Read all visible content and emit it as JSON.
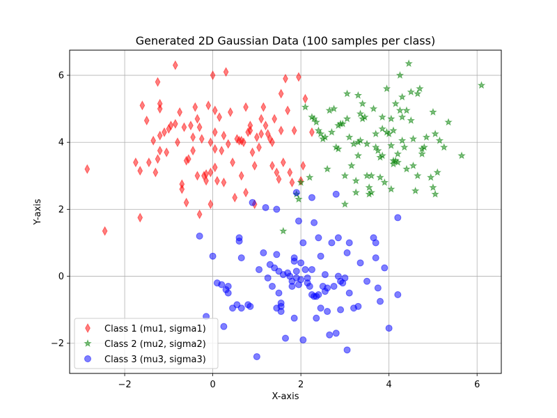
{
  "chart_data": {
    "type": "scatter",
    "title": "Generated 2D Gaussian Data (100 samples per class)",
    "xlabel": "X-axis",
    "ylabel": "Y-axis",
    "xlim": [
      -3.25,
      6.55
    ],
    "ylim": [
      -2.9,
      6.75
    ],
    "xticks": [
      -2,
      0,
      2,
      4,
      6
    ],
    "yticks": [
      -2,
      0,
      2,
      4,
      6
    ],
    "xtick_labels": [
      "−2",
      "0",
      "2",
      "4",
      "6"
    ],
    "ytick_labels": [
      "−2",
      "0",
      "2",
      "4",
      "6"
    ],
    "grid": true,
    "legend_position": "lower-left",
    "series": [
      {
        "name": "Class 1 (mu1, sigma1)",
        "marker": "thin_diamond",
        "color": "#ff0000",
        "points": [
          [
            -2.85,
            3.2
          ],
          [
            -2.45,
            1.35
          ],
          [
            -1.75,
            3.4
          ],
          [
            -1.65,
            3.15
          ],
          [
            -1.65,
            1.75
          ],
          [
            -1.6,
            5.1
          ],
          [
            -1.5,
            4.65
          ],
          [
            -1.45,
            3.4
          ],
          [
            -1.35,
            4.05
          ],
          [
            -1.3,
            3.1
          ],
          [
            -1.25,
            5.8
          ],
          [
            -1.25,
            3.5
          ],
          [
            -1.2,
            5.15
          ],
          [
            -1.2,
            5.0
          ],
          [
            -1.2,
            4.2
          ],
          [
            -1.2,
            3.75
          ],
          [
            -1.1,
            4.3
          ],
          [
            -1.05,
            3.7
          ],
          [
            -1.0,
            4.4
          ],
          [
            -0.95,
            4.5
          ],
          [
            -0.85,
            6.3
          ],
          [
            -0.85,
            4.55
          ],
          [
            -0.8,
            4.0
          ],
          [
            -0.75,
            4.9
          ],
          [
            -0.7,
            2.75
          ],
          [
            -0.7,
            2.6
          ],
          [
            -0.65,
            4.45
          ],
          [
            -0.6,
            3.45
          ],
          [
            -0.6,
            2.2
          ],
          [
            -0.55,
            3.5
          ],
          [
            -0.5,
            4.5
          ],
          [
            -0.45,
            4.15
          ],
          [
            -0.45,
            3.75
          ],
          [
            -0.4,
            5.05
          ],
          [
            -0.35,
            4.7
          ],
          [
            -0.35,
            3.0
          ],
          [
            -0.3,
            4.45
          ],
          [
            -0.3,
            1.85
          ],
          [
            -0.25,
            4.1
          ],
          [
            -0.2,
            3.0
          ],
          [
            -0.15,
            3.05
          ],
          [
            -0.15,
            2.85
          ],
          [
            -0.1,
            5.1
          ],
          [
            -0.05,
            4.0
          ],
          [
            -0.05,
            3.1
          ],
          [
            -0.05,
            2.15
          ],
          [
            0.05,
            4.3
          ],
          [
            0.0,
            6.0
          ],
          [
            0.05,
            4.95
          ],
          [
            0.05,
            3.8
          ],
          [
            0.05,
            3.25
          ],
          [
            0.1,
            2.85
          ],
          [
            0.15,
            4.75
          ],
          [
            0.2,
            3.75
          ],
          [
            0.25,
            4.2
          ],
          [
            0.25,
            2.8
          ],
          [
            0.3,
            6.1
          ],
          [
            0.35,
            3.95
          ],
          [
            0.4,
            4.9
          ],
          [
            0.45,
            3.4
          ],
          [
            0.5,
            2.35
          ],
          [
            0.55,
            4.1
          ],
          [
            0.6,
            4.05
          ],
          [
            0.65,
            4.05
          ],
          [
            0.65,
            3.0
          ],
          [
            0.7,
            4.0
          ],
          [
            0.75,
            5.05
          ],
          [
            0.75,
            2.5
          ],
          [
            0.8,
            4.3
          ],
          [
            0.85,
            4.5
          ],
          [
            0.85,
            4.35
          ],
          [
            0.9,
            3.7
          ],
          [
            0.95,
            3.3
          ],
          [
            0.95,
            2.15
          ],
          [
            1.0,
            4.15
          ],
          [
            1.05,
            3.85
          ],
          [
            1.1,
            4.7
          ],
          [
            1.1,
            4.25
          ],
          [
            1.15,
            5.05
          ],
          [
            1.2,
            4.5
          ],
          [
            1.25,
            4.25
          ],
          [
            1.3,
            4.1
          ],
          [
            1.35,
            4.0
          ],
          [
            1.35,
            3.3
          ],
          [
            1.4,
            4.7
          ],
          [
            1.45,
            3.1
          ],
          [
            1.5,
            2.9
          ],
          [
            1.55,
            5.45
          ],
          [
            1.55,
            4.35
          ],
          [
            1.6,
            3.4
          ],
          [
            1.65,
            5.9
          ],
          [
            1.7,
            4.95
          ],
          [
            1.75,
            3.1
          ],
          [
            1.8,
            2.8
          ],
          [
            1.85,
            4.35
          ],
          [
            1.95,
            5.95
          ],
          [
            2.0,
            2.85
          ],
          [
            2.05,
            3.3
          ],
          [
            2.1,
            5.3
          ],
          [
            2.25,
            4.3
          ]
        ]
      },
      {
        "name": "Class 2 (mu2, sigma2)",
        "marker": "star",
        "color": "#008000",
        "points": [
          [
            1.6,
            1.35
          ],
          [
            1.9,
            2.45
          ],
          [
            1.95,
            2.3
          ],
          [
            2.0,
            2.8
          ],
          [
            2.1,
            5.05
          ],
          [
            2.2,
            2.95
          ],
          [
            2.3,
            4.7
          ],
          [
            2.35,
            4.6
          ],
          [
            2.4,
            4.35
          ],
          [
            2.45,
            4.25
          ],
          [
            2.55,
            4.15
          ],
          [
            2.6,
            3.2
          ],
          [
            2.65,
            4.95
          ],
          [
            2.7,
            4.3
          ],
          [
            2.8,
            3.85
          ],
          [
            2.85,
            3.8
          ],
          [
            2.85,
            4.5
          ],
          [
            2.9,
            4.55
          ],
          [
            3.0,
            2.15
          ],
          [
            3.0,
            3.0
          ],
          [
            3.05,
            4.7
          ],
          [
            3.1,
            4.15
          ],
          [
            3.2,
            3.95
          ],
          [
            3.25,
            2.85
          ],
          [
            3.3,
            5.4
          ],
          [
            3.3,
            4.0
          ],
          [
            3.35,
            4.85
          ],
          [
            3.4,
            5.15
          ],
          [
            3.45,
            4.75
          ],
          [
            3.5,
            3.95
          ],
          [
            3.55,
            2.65
          ],
          [
            3.6,
            3.0
          ],
          [
            3.65,
            5.0
          ],
          [
            3.7,
            4.25
          ],
          [
            3.75,
            3.75
          ],
          [
            3.8,
            3.55
          ],
          [
            3.85,
            4.4
          ],
          [
            3.85,
            4.75
          ],
          [
            3.9,
            2.8
          ],
          [
            3.95,
            5.6
          ],
          [
            4.0,
            4.25
          ],
          [
            4.05,
            3.9
          ],
          [
            4.05,
            4.7
          ],
          [
            4.1,
            3.45
          ],
          [
            4.1,
            3.35
          ],
          [
            4.15,
            3.45
          ],
          [
            4.15,
            5.15
          ],
          [
            4.2,
            3.4
          ],
          [
            4.25,
            4.95
          ],
          [
            4.3,
            4.75
          ],
          [
            4.3,
            4.05
          ],
          [
            4.35,
            3.85
          ],
          [
            4.4,
            3.2
          ],
          [
            4.45,
            6.35
          ],
          [
            4.5,
            5.5
          ],
          [
            4.5,
            4.65
          ],
          [
            4.55,
            4.1
          ],
          [
            4.6,
            2.55
          ],
          [
            4.65,
            3.0
          ],
          [
            4.7,
            5.6
          ],
          [
            4.75,
            3.65
          ],
          [
            4.8,
            3.85
          ],
          [
            4.85,
            4.15
          ],
          [
            4.95,
            2.95
          ],
          [
            5.0,
            4.9
          ],
          [
            5.05,
            4.25
          ],
          [
            5.05,
            2.45
          ],
          [
            5.1,
            3.1
          ],
          [
            5.15,
            4.05
          ],
          [
            5.25,
            3.85
          ],
          [
            5.35,
            4.6
          ],
          [
            5.65,
            3.6
          ],
          [
            6.1,
            5.7
          ],
          [
            2.95,
            4.55
          ],
          [
            3.25,
            2.5
          ],
          [
            3.35,
            4.05
          ],
          [
            3.55,
            2.45
          ],
          [
            3.8,
            2.95
          ],
          [
            4.05,
            2.6
          ],
          [
            4.25,
            6.0
          ],
          [
            3.7,
            3.85
          ],
          [
            3.5,
            3.0
          ],
          [
            4.1,
            4.35
          ],
          [
            2.75,
            5.0
          ],
          [
            3.05,
            5.45
          ],
          [
            4.55,
            3.3
          ],
          [
            4.65,
            5.45
          ],
          [
            2.5,
            4.1
          ],
          [
            3.15,
            3.3
          ],
          [
            4.4,
            4.95
          ],
          [
            3.85,
            3.6
          ],
          [
            4.2,
            3.65
          ],
          [
            3.6,
            2.5
          ],
          [
            4.75,
            3.8
          ],
          [
            3.4,
            4.7
          ],
          [
            2.25,
            4.75
          ],
          [
            3.95,
            4.3
          ],
          [
            4.3,
            5.35
          ],
          [
            5.0,
            2.65
          ],
          [
            3.3,
            3.6
          ]
        ]
      },
      {
        "name": "Class 3 (mu3, sigma3)",
        "marker": "circle",
        "color": "#0000ff",
        "points": [
          [
            -0.3,
            1.2
          ],
          [
            -0.15,
            -1.2
          ],
          [
            0.0,
            0.6
          ],
          [
            0.1,
            -0.2
          ],
          [
            0.2,
            -0.25
          ],
          [
            0.25,
            -1.5
          ],
          [
            0.3,
            -0.4
          ],
          [
            0.35,
            -0.3
          ],
          [
            0.35,
            -0.5
          ],
          [
            0.45,
            -0.95
          ],
          [
            0.55,
            -0.85
          ],
          [
            0.6,
            1.05
          ],
          [
            0.6,
            1.15
          ],
          [
            0.65,
            0.55
          ],
          [
            0.65,
            -0.95
          ],
          [
            0.8,
            -0.85
          ],
          [
            0.85,
            -0.9
          ],
          [
            0.9,
            2.2
          ],
          [
            1.0,
            -2.4
          ],
          [
            1.05,
            0.2
          ],
          [
            1.15,
            0.7
          ],
          [
            1.2,
            2.05
          ],
          [
            1.25,
            -0.05
          ],
          [
            1.3,
            0.35
          ],
          [
            1.35,
            -0.3
          ],
          [
            1.4,
            0.25
          ],
          [
            1.45,
            0.65
          ],
          [
            1.45,
            2.0
          ],
          [
            1.5,
            0.15
          ],
          [
            1.5,
            -0.5
          ],
          [
            1.55,
            -0.8
          ],
          [
            1.55,
            -0.9
          ],
          [
            1.55,
            -1.05
          ],
          [
            1.6,
            0.05
          ],
          [
            1.65,
            -1.85
          ],
          [
            1.7,
            0.1
          ],
          [
            1.75,
            0.0
          ],
          [
            1.8,
            -0.3
          ],
          [
            1.85,
            0.55
          ],
          [
            1.85,
            0.45
          ],
          [
            1.85,
            -1.25
          ],
          [
            1.9,
            0.15
          ],
          [
            1.9,
            -0.05
          ],
          [
            1.95,
            1.65
          ],
          [
            2.0,
            0.4
          ],
          [
            2.0,
            -0.1
          ],
          [
            2.05,
            1.0
          ],
          [
            2.05,
            -1.9
          ],
          [
            2.1,
            0.2
          ],
          [
            2.15,
            -0.2
          ],
          [
            2.2,
            -0.3
          ],
          [
            2.25,
            2.35
          ],
          [
            2.25,
            -0.55
          ],
          [
            2.3,
            1.6
          ],
          [
            2.3,
            -0.6
          ],
          [
            2.35,
            -1.25
          ],
          [
            2.4,
            1.15
          ],
          [
            2.4,
            -0.55
          ],
          [
            2.45,
            0.6
          ],
          [
            2.5,
            -0.3
          ],
          [
            2.55,
            -0.45
          ],
          [
            2.6,
            -0.35
          ],
          [
            2.65,
            -1.75
          ],
          [
            2.7,
            1.0
          ],
          [
            2.75,
            -0.3
          ],
          [
            2.8,
            -1.7
          ],
          [
            2.85,
            1.15
          ],
          [
            2.9,
            -0.15
          ],
          [
            2.95,
            -0.2
          ],
          [
            3.0,
            -0.05
          ],
          [
            3.05,
            0.7
          ],
          [
            3.05,
            -2.2
          ],
          [
            3.1,
            -0.5
          ],
          [
            3.2,
            -0.95
          ],
          [
            3.3,
            -0.9
          ],
          [
            3.35,
            0.4
          ],
          [
            3.5,
            -0.15
          ],
          [
            3.65,
            1.15
          ],
          [
            3.7,
            0.55
          ],
          [
            3.75,
            -0.35
          ],
          [
            3.8,
            -0.75
          ],
          [
            3.9,
            0.25
          ],
          [
            4.0,
            -1.55
          ],
          [
            4.2,
            1.75
          ],
          [
            4.2,
            -0.55
          ],
          [
            3.7,
            1.0
          ],
          [
            2.6,
            -1.05
          ],
          [
            2.15,
            -0.05
          ],
          [
            2.8,
            2.45
          ],
          [
            2.85,
            0.0
          ],
          [
            3.1,
            1.0
          ],
          [
            1.95,
            -0.25
          ],
          [
            1.45,
            -0.95
          ],
          [
            2.9,
            -1.0
          ],
          [
            2.35,
            -0.6
          ],
          [
            1.8,
            -0.15
          ],
          [
            2.55,
            0.05
          ],
          [
            2.45,
            -0.95
          ],
          [
            1.9,
            2.5
          ],
          [
            2.25,
            0.2
          ]
        ]
      }
    ]
  }
}
